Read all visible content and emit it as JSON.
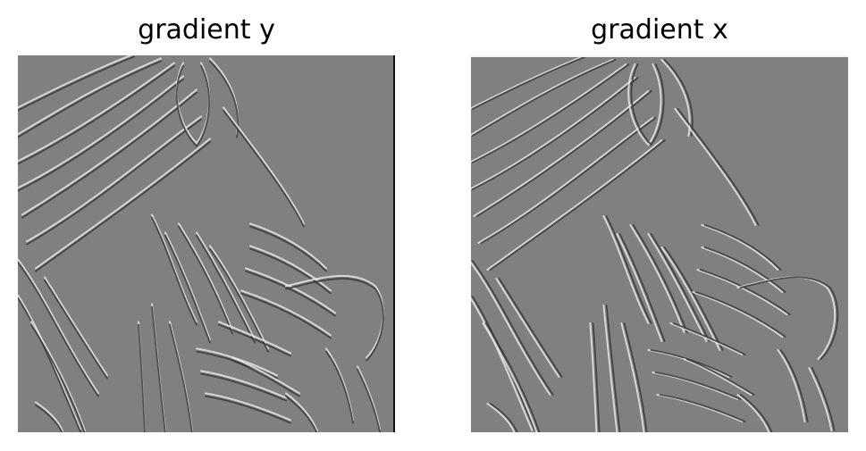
{
  "figure": {
    "panels": [
      {
        "title": "gradient y",
        "subject": "zebra"
      },
      {
        "title": "gradient x",
        "subject": "zebra"
      }
    ],
    "colors": {
      "background": "#ffffff",
      "mid_gray": "#808080",
      "highlight": "#e6e6e6",
      "shadow": "#3a3a3a"
    }
  }
}
